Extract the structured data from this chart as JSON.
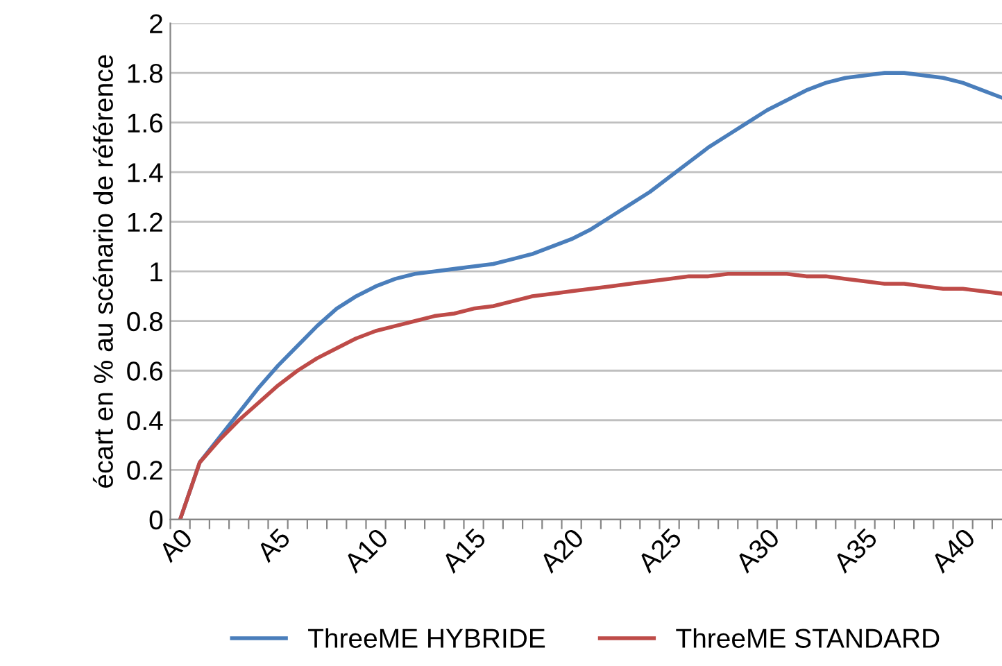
{
  "chart_data": {
    "type": "line",
    "ylabel": "écart en % au scénario de référence",
    "categories": [
      "A0",
      null,
      null,
      null,
      null,
      "A5",
      null,
      null,
      null,
      null,
      "A10",
      null,
      null,
      null,
      null,
      "A15",
      null,
      null,
      null,
      null,
      "A20",
      null,
      null,
      null,
      null,
      "A25",
      null,
      null,
      null,
      null,
      "A30",
      null,
      null,
      null,
      null,
      "A35",
      null,
      null,
      null,
      null,
      "A40",
      null,
      null
    ],
    "series": [
      {
        "name": "ThreeME HYBRIDE",
        "color": "#4a7ebb",
        "values": [
          0,
          0.23,
          0.33,
          0.43,
          0.53,
          0.62,
          0.7,
          0.78,
          0.85,
          0.9,
          0.94,
          0.97,
          0.99,
          1.0,
          1.01,
          1.02,
          1.03,
          1.05,
          1.07,
          1.1,
          1.13,
          1.17,
          1.22,
          1.27,
          1.32,
          1.38,
          1.44,
          1.5,
          1.55,
          1.6,
          1.65,
          1.69,
          1.73,
          1.76,
          1.78,
          1.79,
          1.8,
          1.8,
          1.79,
          1.78,
          1.76,
          1.73,
          1.7
        ]
      },
      {
        "name": "ThreeME STANDARD",
        "color": "#be4b48",
        "values": [
          0,
          0.23,
          0.32,
          0.4,
          0.47,
          0.54,
          0.6,
          0.65,
          0.69,
          0.73,
          0.76,
          0.78,
          0.8,
          0.82,
          0.83,
          0.85,
          0.86,
          0.88,
          0.9,
          0.91,
          0.92,
          0.93,
          0.94,
          0.95,
          0.96,
          0.97,
          0.98,
          0.98,
          0.99,
          0.99,
          0.99,
          0.99,
          0.98,
          0.98,
          0.97,
          0.96,
          0.95,
          0.95,
          0.94,
          0.93,
          0.93,
          0.92,
          0.91
        ]
      }
    ],
    "ylim": [
      0,
      2
    ],
    "yticks": [
      0,
      0.2,
      0.4,
      0.6,
      0.8,
      1,
      1.2,
      1.4,
      1.6,
      1.8,
      2
    ],
    "grid": "y",
    "legend": "bottom",
    "marker": "none",
    "line_style": "solid"
  }
}
